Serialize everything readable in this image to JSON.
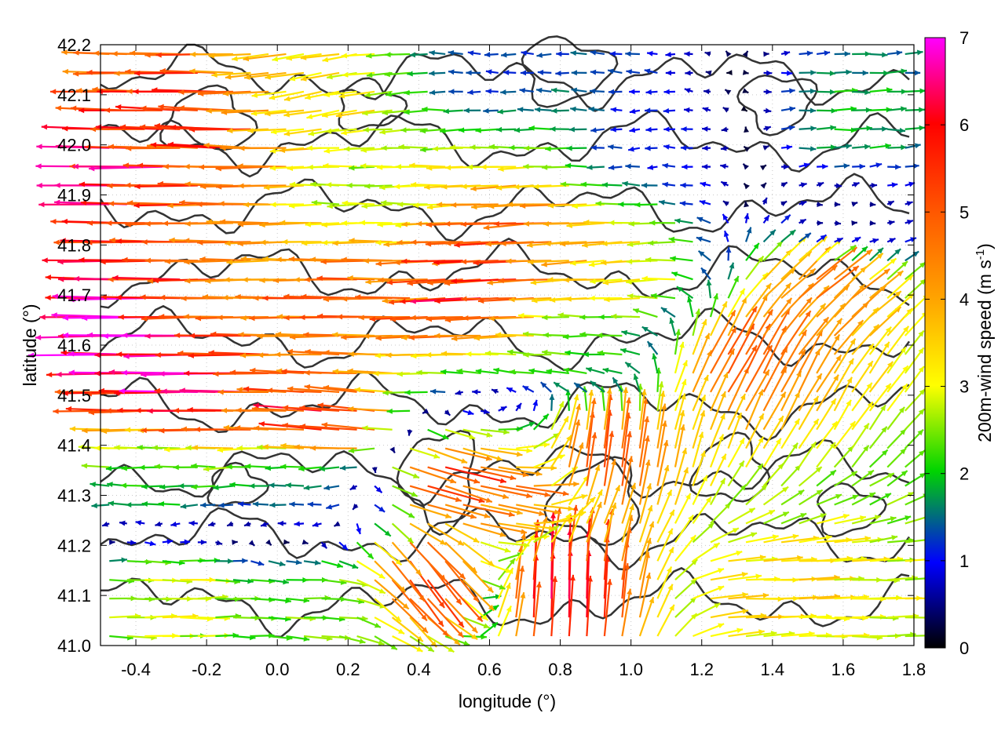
{
  "chart_data": {
    "type": "vector_field",
    "xlabel": "longitude (°)",
    "ylabel": "latitude (°)",
    "xlim": [
      -0.5,
      1.8
    ],
    "ylim": [
      41.0,
      42.2
    ],
    "x_ticks": [
      "-0.4",
      "-0.2",
      "0.0",
      "0.2",
      "0.4",
      "0.6",
      "0.8",
      "1.0",
      "1.2",
      "1.4",
      "1.6",
      "1.8"
    ],
    "y_ticks": [
      "41.0",
      "41.1",
      "41.2",
      "41.3",
      "41.4",
      "41.5",
      "41.6",
      "41.7",
      "41.8",
      "41.9",
      "42.0",
      "42.1",
      "42.2"
    ],
    "colorbar": {
      "label_main": "200m-wind speed (m s",
      "label_sup": "-1",
      "label_end": ")",
      "range": [
        0,
        7
      ],
      "ticks": [
        "0",
        "1",
        "2",
        "3",
        "4",
        "5",
        "6",
        "7"
      ],
      "colors": [
        "#000000",
        "#0000ff",
        "#00d400",
        "#ffff00",
        "#ffa500",
        "#ff5a00",
        "#ff0000",
        "#ff00ff"
      ]
    },
    "grid": true,
    "contours": "terrain elevation (black lines)",
    "vector_samples": [
      {
        "lon": -0.45,
        "lat": 42.15,
        "u": -5.0,
        "v": 0.0
      },
      {
        "lon": -0.2,
        "lat": 42.05,
        "u": -5.5,
        "v": 0.3
      },
      {
        "lon": 0.1,
        "lat": 42.1,
        "u": -3.2,
        "v": -0.6
      },
      {
        "lon": -0.4,
        "lat": 41.95,
        "u": -6.0,
        "v": 0.0
      },
      {
        "lon": 0.3,
        "lat": 41.9,
        "u": -2.5,
        "v": 0.0
      },
      {
        "lon": 0.7,
        "lat": 41.8,
        "u": -5.2,
        "v": -0.3
      },
      {
        "lon": 1.0,
        "lat": 41.75,
        "u": -3.5,
        "v": -0.3
      },
      {
        "lon": -0.4,
        "lat": 41.6,
        "u": -6.8,
        "v": 0.0
      },
      {
        "lon": 0.2,
        "lat": 41.7,
        "u": -4.8,
        "v": 0.0
      },
      {
        "lon": 0.6,
        "lat": 41.7,
        "u": -5.8,
        "v": -0.3
      },
      {
        "lon": 0.9,
        "lat": 41.6,
        "u": -2.2,
        "v": 0.0
      },
      {
        "lon": -0.2,
        "lat": 41.5,
        "u": -6.5,
        "v": 0.0
      },
      {
        "lon": 0.2,
        "lat": 41.45,
        "u": -6.0,
        "v": 0.5
      },
      {
        "lon": -0.3,
        "lat": 41.35,
        "u": -2.0,
        "v": 0.0
      },
      {
        "lon": 0.1,
        "lat": 41.3,
        "u": -1.5,
        "v": 0.0
      },
      {
        "lon": 0.45,
        "lat": 41.35,
        "u": 5.5,
        "v": -1.5
      },
      {
        "lon": 0.65,
        "lat": 41.3,
        "u": 4.5,
        "v": -1.0
      },
      {
        "lon": 0.4,
        "lat": 41.15,
        "u": 3.5,
        "v": -4.5
      },
      {
        "lon": 0.8,
        "lat": 41.1,
        "u": 0.0,
        "v": 6.5
      },
      {
        "lon": 0.9,
        "lat": 41.35,
        "u": 0.5,
        "v": 5.5
      },
      {
        "lon": 1.3,
        "lat": 41.55,
        "u": 2.5,
        "v": 4.5
      },
      {
        "lon": 1.5,
        "lat": 41.7,
        "u": 3.5,
        "v": 3.0
      },
      {
        "lon": 1.6,
        "lat": 41.85,
        "u": 0.5,
        "v": 0.0
      },
      {
        "lon": 1.4,
        "lat": 41.1,
        "u": 3.5,
        "v": 0.0
      },
      {
        "lon": 1.6,
        "lat": 41.05,
        "u": 3.0,
        "v": 0.0
      },
      {
        "lon": -0.3,
        "lat": 41.1,
        "u": 3.0,
        "v": 0.0
      },
      {
        "lon": 0.1,
        "lat": 41.1,
        "u": 2.5,
        "v": 0.0
      },
      {
        "lon": 1.1,
        "lat": 42.0,
        "u": -1.0,
        "v": 0.0
      },
      {
        "lon": 1.6,
        "lat": 42.05,
        "u": 2.0,
        "v": 0.0
      },
      {
        "lon": 0.6,
        "lat": 42.15,
        "u": -1.2,
        "v": 0.0
      }
    ]
  }
}
